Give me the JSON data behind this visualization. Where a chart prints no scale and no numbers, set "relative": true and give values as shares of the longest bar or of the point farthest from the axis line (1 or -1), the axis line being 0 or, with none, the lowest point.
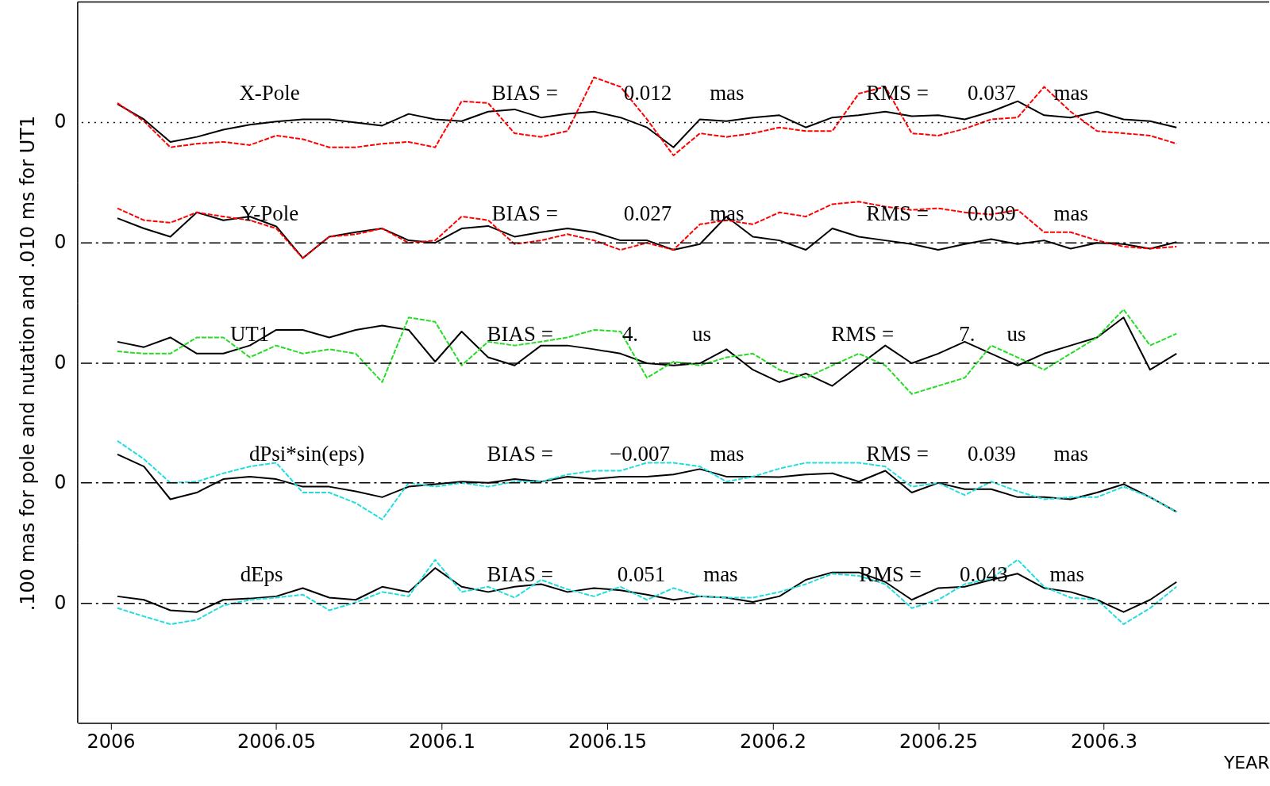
{
  "chart_data": [
    {
      "type": "line",
      "relative": true,
      "xlim": [
        2005.99,
        2006.35
      ],
      "tick_labels": false,
      "x": [
        2006.002,
        2006.01,
        2006.018,
        2006.026,
        2006.034,
        2006.042,
        2006.05,
        2006.058,
        2006.066,
        2006.074,
        2006.082,
        2006.09,
        2006.098,
        2006.106,
        2006.114,
        2006.122,
        2006.13,
        2006.138,
        2006.146,
        2006.154,
        2006.162,
        2006.17,
        2006.178,
        2006.186,
        2006.194,
        2006.202,
        2006.21,
        2006.218,
        2006.226,
        2006.234,
        2006.242,
        2006.25,
        2006.258,
        2006.266,
        2006.274,
        2006.282,
        2006.29,
        2006.298,
        2006.306,
        2006.314,
        2006.322
      ],
      "series": [
        {
          "color": "#ff0000",
          "line_style": "dashed",
          "values": [
            0.43,
            0.03,
            -0.55,
            -0.47,
            -0.43,
            -0.5,
            -0.29,
            -0.37,
            -0.55,
            -0.55,
            -0.47,
            -0.43,
            -0.55,
            0.47,
            0.43,
            -0.24,
            -0.32,
            -0.19,
            1,
            0.79,
            0.07,
            -0.73,
            -0.24,
            -0.32,
            -0.24,
            -0.11,
            -0.19,
            -0.19,
            0.64,
            0.79,
            -0.24,
            -0.29,
            -0.14,
            0.07,
            0.11,
            0.79,
            0.24,
            -0.19,
            -0.24,
            -0.29,
            -0.47
          ]
        },
        {
          "color": "#000000",
          "line_style": "solid",
          "values": [
            0.41,
            0.07,
            -0.43,
            -0.32,
            -0.16,
            -0.05,
            0.02,
            0.07,
            0.07,
            0,
            -0.07,
            0.19,
            0.07,
            0.03,
            0.24,
            0.29,
            0.11,
            0.19,
            0.24,
            0.11,
            -0.11,
            -0.55,
            0.07,
            0.03,
            0.11,
            0.16,
            -0.11,
            0.11,
            0.16,
            0.24,
            0.14,
            0.16,
            0.07,
            0.24,
            0.47,
            0.16,
            0.11,
            0.24,
            0.07,
            0.03,
            -0.11
          ]
        }
      ],
      "ref_lines": [
        {
          "axis": "y",
          "value": 0,
          "line_style": "dotted",
          "color": "#000000"
        }
      ],
      "annotations": [
        "0",
        "X-Pole",
        "BIAS =",
        "0.012",
        "mas",
        "RMS =",
        "0.037",
        "mas"
      ]
    },
    {
      "type": "line",
      "relative": true,
      "xlim": [
        2005.99,
        2006.35
      ],
      "tick_labels": false,
      "x": [
        2006.002,
        2006.01,
        2006.018,
        2006.026,
        2006.034,
        2006.042,
        2006.05,
        2006.058,
        2006.066,
        2006.074,
        2006.082,
        2006.09,
        2006.098,
        2006.106,
        2006.114,
        2006.122,
        2006.13,
        2006.138,
        2006.146,
        2006.154,
        2006.162,
        2006.17,
        2006.178,
        2006.186,
        2006.194,
        2006.202,
        2006.21,
        2006.218,
        2006.226,
        2006.234,
        2006.242,
        2006.25,
        2006.258,
        2006.266,
        2006.274,
        2006.282,
        2006.29,
        2006.298,
        2006.306,
        2006.314,
        2006.322
      ],
      "series": [
        {
          "color": "#ff0000",
          "line_style": "dashed",
          "values": [
            0.84,
            0.55,
            0.49,
            0.74,
            0.64,
            0.55,
            0.35,
            -0.37,
            0.15,
            0.21,
            0.35,
            0,
            0.06,
            0.64,
            0.55,
            -0.03,
            0.06,
            0.21,
            0.06,
            -0.17,
            0,
            -0.17,
            0.45,
            0.55,
            0.45,
            0.74,
            0.64,
            0.94,
            1,
            0.88,
            0.8,
            0.84,
            0.74,
            0.69,
            0.8,
            0.26,
            0.26,
            0.06,
            -0.09,
            -0.14,
            -0.09
          ]
        },
        {
          "color": "#000000",
          "line_style": "solid",
          "values": [
            0.6,
            0.35,
            0.15,
            0.74,
            0.55,
            0.64,
            0.4,
            -0.37,
            0.15,
            0.26,
            0.35,
            0.06,
            0,
            0.35,
            0.41,
            0.15,
            0.26,
            0.35,
            0.26,
            0.06,
            0.06,
            -0.17,
            -0.03,
            0.64,
            0.15,
            0.06,
            -0.17,
            0.35,
            0.15,
            0.06,
            -0.03,
            -0.17,
            -0.03,
            0.09,
            -0.03,
            0.06,
            -0.14,
            0,
            -0.03,
            -0.14,
            0.02
          ]
        }
      ],
      "ref_lines": [
        {
          "axis": "y",
          "value": 0,
          "line_style": "dashed",
          "color": "#000000"
        }
      ],
      "annotations": [
        "0",
        "Y-Pole",
        "BIAS =",
        "0.027",
        "mas",
        "RMS =",
        "0.039",
        "mas"
      ]
    },
    {
      "type": "line",
      "relative": true,
      "xlim": [
        2005.99,
        2006.35
      ],
      "tick_labels": false,
      "ylabel": ".100 mas for pole and nutation and  .010 ms for UT1",
      "x": [
        2006.002,
        2006.01,
        2006.018,
        2006.026,
        2006.034,
        2006.042,
        2006.05,
        2006.058,
        2006.066,
        2006.074,
        2006.082,
        2006.09,
        2006.098,
        2006.106,
        2006.114,
        2006.122,
        2006.13,
        2006.138,
        2006.146,
        2006.154,
        2006.162,
        2006.17,
        2006.178,
        2006.186,
        2006.194,
        2006.202,
        2006.21,
        2006.218,
        2006.226,
        2006.234,
        2006.242,
        2006.25,
        2006.258,
        2006.266,
        2006.274,
        2006.282,
        2006.29,
        2006.298,
        2006.306,
        2006.314,
        2006.322
      ],
      "series": [
        {
          "color": "#22dd22",
          "line_style": "dashed",
          "values": [
            0.22,
            0.18,
            0.18,
            0.48,
            0.48,
            0.11,
            0.33,
            0.18,
            0.26,
            0.18,
            -0.35,
            0.85,
            0.77,
            -0.04,
            0.4,
            0.33,
            0.4,
            0.48,
            0.62,
            0.59,
            -0.27,
            0.03,
            -0.04,
            0.11,
            0.18,
            -0.12,
            -0.27,
            -0.04,
            0.18,
            -0.04,
            -0.57,
            -0.42,
            -0.27,
            0.33,
            0.11,
            -0.12,
            0.18,
            0.48,
            1,
            0.33,
            0.55
          ]
        },
        {
          "color": "#000000",
          "line_style": "solid",
          "values": [
            0.4,
            0.3,
            0.48,
            0.18,
            0.18,
            0.33,
            0.62,
            0.62,
            0.48,
            0.62,
            0.7,
            0.62,
            0.03,
            0.59,
            0.11,
            -0.04,
            0.33,
            0.33,
            0.26,
            0.18,
            0,
            -0.04,
            0,
            0.26,
            -0.12,
            -0.35,
            -0.19,
            -0.42,
            -0.04,
            0.33,
            0,
            0.18,
            0.4,
            0.18,
            -0.04,
            0.18,
            0.33,
            0.48,
            0.85,
            -0.12,
            0.18
          ]
        }
      ],
      "ref_lines": [
        {
          "axis": "y",
          "value": 0,
          "line_style": "dashed",
          "color": "#000000"
        }
      ],
      "annotations": [
        "0",
        "UT1",
        "BIAS =",
        "4.",
        "us",
        "RMS =",
        "7.",
        "us"
      ]
    },
    {
      "type": "line",
      "relative": true,
      "xlim": [
        2005.99,
        2006.35
      ],
      "tick_labels": false,
      "x": [
        2006.002,
        2006.01,
        2006.018,
        2006.026,
        2006.034,
        2006.042,
        2006.05,
        2006.058,
        2006.066,
        2006.074,
        2006.082,
        2006.09,
        2006.098,
        2006.106,
        2006.114,
        2006.122,
        2006.13,
        2006.138,
        2006.146,
        2006.154,
        2006.162,
        2006.17,
        2006.178,
        2006.186,
        2006.194,
        2006.202,
        2006.21,
        2006.218,
        2006.226,
        2006.234,
        2006.242,
        2006.25,
        2006.258,
        2006.266,
        2006.274,
        2006.282,
        2006.29,
        2006.298,
        2006.306,
        2006.314,
        2006.322
      ],
      "series": [
        {
          "color": "#22dddd",
          "line_style": "dashed",
          "values": [
            1,
            0.57,
            0,
            0.03,
            0.23,
            0.39,
            0.48,
            -0.23,
            -0.23,
            -0.48,
            -0.87,
            0,
            -0.09,
            0,
            -0.09,
            0.03,
            0.03,
            0.2,
            0.29,
            0.29,
            0.48,
            0.48,
            0.39,
            0.03,
            0.15,
            0.34,
            0.48,
            0.48,
            0.48,
            0.39,
            -0.09,
            0,
            -0.29,
            0.03,
            -0.2,
            -0.39,
            -0.34,
            -0.34,
            -0.09,
            -0.34,
            -0.69
          ]
        },
        {
          "color": "#000000",
          "line_style": "solid",
          "values": [
            0.68,
            0.39,
            -0.39,
            -0.23,
            0.09,
            0.15,
            0.09,
            -0.09,
            -0.09,
            -0.2,
            -0.34,
            -0.09,
            -0.03,
            0.03,
            0,
            0.09,
            0.03,
            0.15,
            0.09,
            0.15,
            0.15,
            0.2,
            0.33,
            0.15,
            0.15,
            0.14,
            0.2,
            0.23,
            0.03,
            0.29,
            -0.23,
            0,
            -0.15,
            -0.15,
            -0.34,
            -0.34,
            -0.39,
            -0.23,
            -0.03,
            -0.34,
            -0.69
          ]
        }
      ],
      "ref_lines": [
        {
          "axis": "y",
          "value": 0,
          "line_style": "dashed",
          "color": "#000000"
        }
      ],
      "annotations": [
        "0",
        "dPsi*sin(eps)",
        "BIAS =",
        "−0.007",
        "mas",
        "RMS =",
        "0.039",
        "mas"
      ]
    },
    {
      "type": "line",
      "relative": true,
      "xlim": [
        2005.99,
        2006.35
      ],
      "tick_labels": "x",
      "xlabel": "YEAR",
      "xticks": [
        2006,
        2006.05,
        2006.1,
        2006.15,
        2006.2,
        2006.25,
        2006.3
      ],
      "x": [
        2006.002,
        2006.01,
        2006.018,
        2006.026,
        2006.034,
        2006.042,
        2006.05,
        2006.058,
        2006.066,
        2006.074,
        2006.082,
        2006.09,
        2006.098,
        2006.106,
        2006.114,
        2006.122,
        2006.13,
        2006.138,
        2006.146,
        2006.154,
        2006.162,
        2006.17,
        2006.178,
        2006.186,
        2006.194,
        2006.202,
        2006.21,
        2006.218,
        2006.226,
        2006.234,
        2006.242,
        2006.25,
        2006.258,
        2006.266,
        2006.274,
        2006.282,
        2006.29,
        2006.298,
        2006.306,
        2006.314,
        2006.322
      ],
      "series": [
        {
          "color": "#22dddd",
          "line_style": "dashed",
          "values": [
            -0.11,
            -0.3,
            -0.48,
            -0.38,
            -0.05,
            0.08,
            0.13,
            0.2,
            -0.16,
            0.02,
            0.26,
            0.16,
            1,
            0.26,
            0.38,
            0.13,
            0.54,
            0.32,
            0.16,
            0.38,
            0.08,
            0.35,
            0.16,
            0.13,
            0.13,
            0.26,
            0.44,
            0.68,
            0.63,
            0.44,
            -0.11,
            0.08,
            0.44,
            0.57,
            1,
            0.38,
            0.13,
            0.08,
            -0.48,
            -0.11,
            0.38
          ]
        },
        {
          "color": "#000000",
          "line_style": "solid",
          "values": [
            0.16,
            0.08,
            -0.16,
            -0.2,
            0.08,
            0.11,
            0.16,
            0.35,
            0.13,
            0.08,
            0.38,
            0.26,
            0.81,
            0.38,
            0.26,
            0.38,
            0.44,
            0.26,
            0.35,
            0.3,
            0.2,
            0.08,
            0.16,
            0.13,
            0.03,
            0.16,
            0.54,
            0.71,
            0.71,
            0.49,
            0.08,
            0.35,
            0.38,
            0.54,
            0.68,
            0.35,
            0.26,
            0.08,
            -0.2,
            0.08,
            0.49
          ]
        }
      ],
      "ref_lines": [
        {
          "axis": "y",
          "value": 0,
          "line_style": "dashed",
          "color": "#000000"
        }
      ],
      "annotations": [
        "0",
        "dEps",
        "BIAS =",
        "0.051",
        "mas",
        "RMS =",
        "0.043",
        "mas"
      ]
    }
  ]
}
